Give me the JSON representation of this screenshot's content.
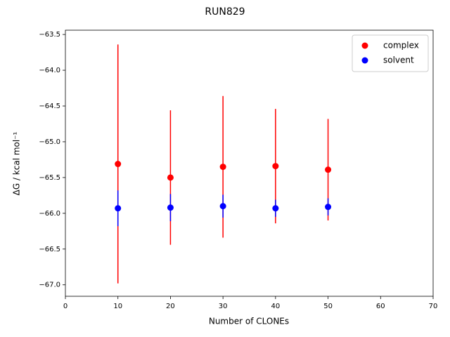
{
  "chart_data": {
    "type": "scatter",
    "title": "RUN829",
    "x_label": "Number of CLONEs",
    "y_label": "ΔG / kcal mol⁻¹",
    "xlim": [
      0,
      70
    ],
    "xticks": [
      0,
      10,
      20,
      30,
      40,
      50,
      60,
      70
    ],
    "ylim": [
      -67.16,
      -63.44
    ],
    "yticks": [
      {
        "value": -63.5,
        "label": "−63.5"
      },
      {
        "value": -64.0,
        "label": "−64.0"
      },
      {
        "value": -64.5,
        "label": "−64.5"
      },
      {
        "value": -65.0,
        "label": "−65.0"
      },
      {
        "value": -65.5,
        "label": "−65.5"
      },
      {
        "value": -66.0,
        "label": "−66.0"
      },
      {
        "value": -66.5,
        "label": "−66.5"
      },
      {
        "value": -67.0,
        "label": "−67.0"
      }
    ],
    "legend": "upper right",
    "grid": false,
    "series": [
      {
        "name": "complex",
        "color": "#ff0000",
        "x": [
          10,
          20,
          30,
          40,
          50
        ],
        "values": [
          -65.31,
          -65.5,
          -65.35,
          -65.34,
          -65.39
        ],
        "errors": [
          1.67,
          0.94,
          0.99,
          0.8,
          0.71
        ]
      },
      {
        "name": "solvent",
        "color": "#0000ff",
        "x": [
          10,
          20,
          30,
          40,
          50
        ],
        "values": [
          -65.93,
          -65.92,
          -65.9,
          -65.93,
          -65.91
        ],
        "errors": [
          0.25,
          0.19,
          0.16,
          0.12,
          0.12
        ]
      }
    ]
  }
}
